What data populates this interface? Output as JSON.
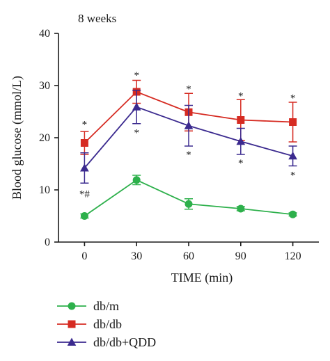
{
  "chart_data": {
    "type": "line",
    "title": "8 weeks",
    "xlabel": "TIME (min)",
    "ylabel": "Blood glucose (mmol/L)",
    "x": [
      0,
      30,
      60,
      90,
      120
    ],
    "xticks": [
      "0",
      "30",
      "60",
      "90",
      "120"
    ],
    "xlim": [
      -15,
      135
    ],
    "ylim": [
      0,
      40
    ],
    "yticks": [
      "0",
      "10",
      "20",
      "30",
      "40"
    ],
    "grid": false,
    "legend_position": "bottom-left",
    "series": [
      {
        "name": "db/m",
        "color": "#2db04b",
        "marker": "circle",
        "values": [
          5.0,
          11.9,
          7.3,
          6.4,
          5.3
        ],
        "errors": [
          0.4,
          0.9,
          1.0,
          0.4,
          0.3
        ]
      },
      {
        "name": "db/db",
        "color": "#d62b22",
        "marker": "square",
        "values": [
          19.0,
          28.8,
          24.9,
          23.4,
          23.0
        ],
        "errors": [
          2.2,
          2.2,
          3.6,
          3.9,
          3.8
        ]
      },
      {
        "name": "db/db+QDD",
        "color": "#3b2a8f",
        "marker": "triangle",
        "values": [
          14.2,
          25.9,
          22.3,
          19.3,
          16.5
        ],
        "errors": [
          2.9,
          3.2,
          3.9,
          2.5,
          1.9
        ]
      }
    ],
    "annotations": [
      {
        "text": "*",
        "x": 0,
        "y": 22.6
      },
      {
        "text": "*",
        "x": 30,
        "y": 32.0
      },
      {
        "text": "*",
        "x": 60,
        "y": 29.4
      },
      {
        "text": "*",
        "x": 90,
        "y": 28.1
      },
      {
        "text": "*",
        "x": 120,
        "y": 27.7
      },
      {
        "text": "*#",
        "x": 0,
        "y": 9.3
      },
      {
        "text": "*",
        "x": 30,
        "y": 21.0
      },
      {
        "text": "*",
        "x": 60,
        "y": 16.8
      },
      {
        "text": "*",
        "x": 90,
        "y": 15.2
      },
      {
        "text": "*",
        "x": 120,
        "y": 12.9
      }
    ]
  }
}
